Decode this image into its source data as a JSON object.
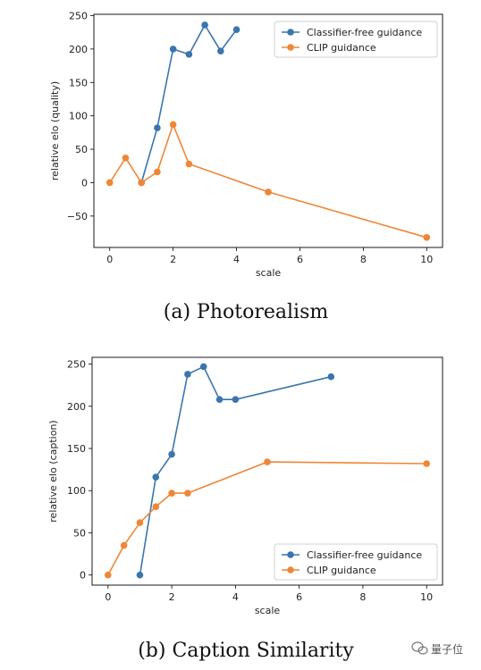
{
  "colors": {
    "cfg": "#3a75ae",
    "clip": "#ef8636"
  },
  "chart_data": [
    {
      "type": "line",
      "caption": "(a)  Photorealism",
      "xlabel": "scale",
      "ylabel": "relative elo (quality)",
      "xlim": [
        -0.5,
        10.5
      ],
      "ylim": [
        -97,
        252
      ],
      "xticks": [
        "0",
        "2",
        "4",
        "6",
        "8",
        "10"
      ],
      "xtick_values": [
        0,
        2,
        4,
        6,
        8,
        10
      ],
      "yticks": [
        "−50",
        "0",
        "50",
        "100",
        "150",
        "200",
        "250"
      ],
      "ytick_values": [
        -50,
        0,
        50,
        100,
        150,
        200,
        250
      ],
      "legend_position": "upper right",
      "series": [
        {
          "name": "Classifier-free guidance",
          "color_key": "cfg",
          "x": [
            1,
            1.5,
            2,
            2.5,
            3,
            3.5,
            4
          ],
          "y": [
            0,
            82,
            200,
            192,
            236,
            197,
            229
          ]
        },
        {
          "name": "CLIP guidance",
          "color_key": "clip",
          "x": [
            0,
            0.5,
            1,
            1.5,
            2,
            2.5,
            5,
            10
          ],
          "y": [
            0,
            37,
            0,
            16,
            87,
            28,
            -14,
            -82
          ]
        }
      ]
    },
    {
      "type": "line",
      "caption": "(b)  Caption Similarity",
      "xlabel": "scale",
      "ylabel": "relative elo (caption)",
      "xlim": [
        -0.5,
        10.5
      ],
      "ylim": [
        -12,
        258
      ],
      "xticks": [
        "0",
        "2",
        "4",
        "6",
        "8",
        "10"
      ],
      "xtick_values": [
        0,
        2,
        4,
        6,
        8,
        10
      ],
      "yticks": [
        "0",
        "50",
        "100",
        "150",
        "200",
        "250"
      ],
      "ytick_values": [
        0,
        50,
        100,
        150,
        200,
        250
      ],
      "legend_position": "lower right",
      "series": [
        {
          "name": "Classifier-free guidance",
          "color_key": "cfg",
          "x": [
            1,
            1.5,
            2,
            2.5,
            3,
            3.5,
            4,
            7
          ],
          "y": [
            0,
            116,
            143,
            238,
            247,
            208,
            208,
            235
          ]
        },
        {
          "name": "CLIP guidance",
          "color_key": "clip",
          "x": [
            0,
            0.5,
            1,
            1.5,
            2,
            2.5,
            5,
            10
          ],
          "y": [
            0,
            35,
            62,
            81,
            97,
            97,
            134,
            132
          ]
        }
      ]
    }
  ],
  "watermark": {
    "text": "量子位",
    "icon": "wechat-icon"
  }
}
